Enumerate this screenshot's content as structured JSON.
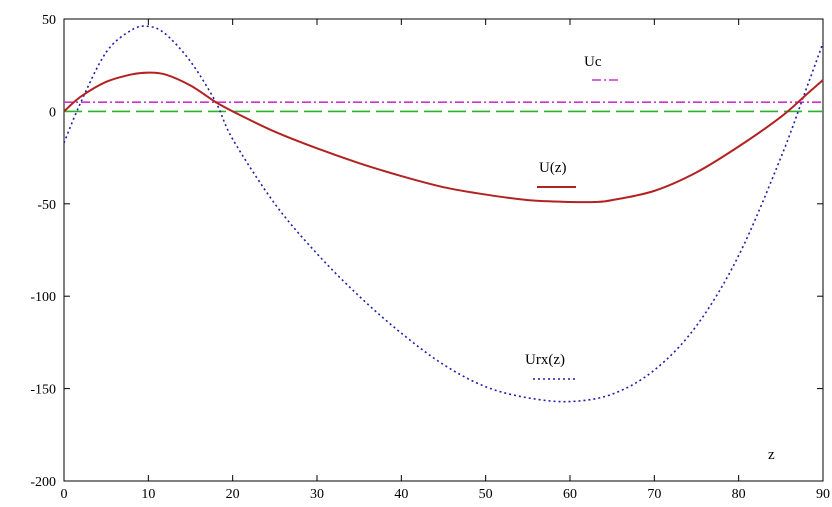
{
  "chart_data": {
    "type": "line",
    "xlabel": "z",
    "ylabel": "",
    "xlim": [
      0,
      90
    ],
    "ylim": [
      -200,
      50
    ],
    "x_ticks": [
      0,
      10,
      20,
      30,
      40,
      50,
      60,
      70,
      80,
      90
    ],
    "y_ticks": [
      50,
      0,
      -50,
      -100,
      -150,
      -200
    ],
    "grid": false,
    "colors": {
      "Uc": "#cc33cc",
      "U(z)": "#b22222",
      "Urx(z)": "#1f1fa8",
      "zero_line": "#2bb22b"
    },
    "series": [
      {
        "name": "Uc",
        "style": "dash-dot",
        "x": [
          0,
          90
        ],
        "y": [
          5,
          5
        ]
      },
      {
        "name": "U(z)",
        "style": "solid",
        "x": [
          0,
          2,
          5,
          8,
          10,
          12,
          15,
          18,
          20,
          25,
          30,
          35,
          40,
          45,
          50,
          55,
          60,
          63,
          65,
          70,
          75,
          80,
          85,
          88,
          90
        ],
        "y": [
          0,
          8,
          16,
          20,
          21,
          20,
          14,
          5,
          0,
          -11,
          -20,
          -28,
          -35,
          -41,
          -45,
          -48,
          -49,
          -49,
          -48,
          -43,
          -33,
          -19,
          -3,
          9,
          17
        ]
      },
      {
        "name": "Urx(z)",
        "style": "dotted",
        "x": [
          0,
          2,
          5,
          8,
          10,
          12,
          15,
          18,
          20,
          25,
          30,
          35,
          40,
          45,
          50,
          55,
          60,
          65,
          70,
          75,
          80,
          85,
          88,
          90
        ],
        "y": [
          -17,
          5,
          32,
          44,
          46,
          42,
          27,
          5,
          -15,
          -50,
          -77,
          -100,
          -120,
          -137,
          -149,
          -155,
          -157,
          -153,
          -140,
          -116,
          -78,
          -25,
          12,
          37
        ]
      },
      {
        "name": "",
        "style": "long-dash",
        "x": [
          0,
          90
        ],
        "y": [
          0,
          0
        ]
      }
    ]
  }
}
